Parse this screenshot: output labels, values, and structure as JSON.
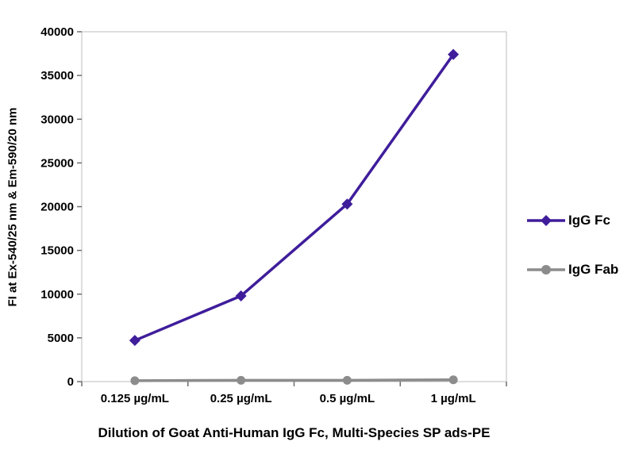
{
  "chart_data": {
    "type": "line",
    "title": "",
    "xlabel": "Dilution of Goat Anti-Human IgG Fc, Multi-Species SP ads-PE",
    "ylabel": "FI at Ex-540/25 nm & Em-590/20 nm",
    "x_categories": [
      "0.125 µg/mL",
      "0.25 µg/mL",
      "0.5 µg/mL",
      "1 µg/mL"
    ],
    "ylim": [
      0,
      40000
    ],
    "ytick_step": 5000,
    "grid": false,
    "legend_position": "right",
    "series": [
      {
        "name": "IgG Fc",
        "marker": "diamond",
        "color": "#3f1d9b",
        "values": [
          4700,
          9800,
          20300,
          37400
        ]
      },
      {
        "name": "IgG Fab",
        "marker": "circle",
        "color": "#8c8c8c",
        "values": [
          100,
          150,
          150,
          200
        ]
      }
    ]
  }
}
